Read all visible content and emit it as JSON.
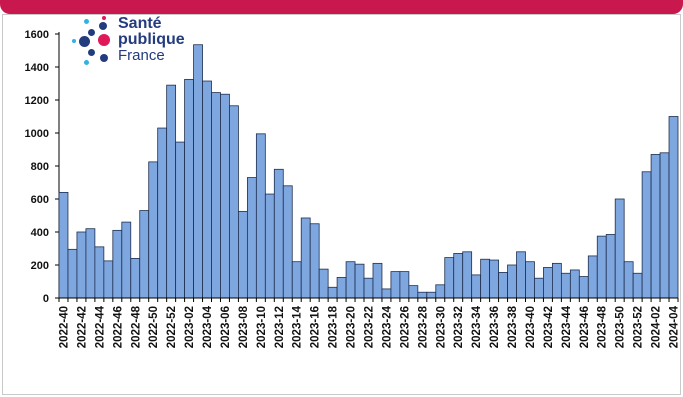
{
  "logo": {
    "line1": "Santé",
    "line2": "publique",
    "line3": "France"
  },
  "colors": {
    "bar_fill": "#7ea6df",
    "bar_stroke": "#1f2f4f",
    "brand_band": "#c8184d",
    "logo_navy": "#233c7e",
    "logo_cyan": "#33b1e0",
    "logo_magenta": "#e0185a"
  },
  "chart_data": {
    "type": "bar",
    "title": "",
    "xlabel": "",
    "ylabel": "",
    "ylim": [
      0,
      1600
    ],
    "yticks": [
      0,
      200,
      400,
      600,
      800,
      1000,
      1200,
      1400,
      1600
    ],
    "grid": false,
    "categories": [
      "2022-40",
      "2022-41",
      "2022-42",
      "2022-43",
      "2022-44",
      "2022-45",
      "2022-46",
      "2022-47",
      "2022-48",
      "2022-49",
      "2022-50",
      "2022-51",
      "2022-52",
      "2023-01",
      "2023-02",
      "2023-03",
      "2023-04",
      "2023-05",
      "2023-06",
      "2023-07",
      "2023-08",
      "2023-09",
      "2023-10",
      "2023-11",
      "2023-12",
      "2023-13",
      "2023-14",
      "2023-15",
      "2023-16",
      "2023-17",
      "2023-18",
      "2023-19",
      "2023-20",
      "2023-21",
      "2023-22",
      "2023-23",
      "2023-24",
      "2023-25",
      "2023-26",
      "2023-27",
      "2023-28",
      "2023-29",
      "2023-30",
      "2023-31",
      "2023-32",
      "2023-33",
      "2023-34",
      "2023-35",
      "2023-36",
      "2023-37",
      "2023-38",
      "2023-39",
      "2023-40",
      "2023-41",
      "2023-42",
      "2023-43",
      "2023-44",
      "2023-45",
      "2023-46",
      "2023-47",
      "2023-48",
      "2023-49",
      "2023-50",
      "2023-51",
      "2023-52",
      "2024-01",
      "2024-02",
      "2024-03",
      "2024-04"
    ],
    "visible_tick_labels": [
      "2022-40",
      "2022-42",
      "2022-44",
      "2022-46",
      "2022-48",
      "2022-50",
      "2022-52",
      "2023-02",
      "2023-04",
      "2023-06",
      "2023-08",
      "2023-10",
      "2023-12",
      "2023-14",
      "2023-16",
      "2023-18",
      "2023-20",
      "2023-22",
      "2023-24",
      "2023-26",
      "2023-28",
      "2023-30",
      "2023-32",
      "2023-34",
      "2023-36",
      "2023-38",
      "2023-40",
      "2023-42",
      "2023-44",
      "2023-46",
      "2023-48",
      "2023-50",
      "2023-52",
      "2024-02",
      "2024-04"
    ],
    "values": [
      640,
      295,
      400,
      420,
      310,
      225,
      410,
      460,
      240,
      530,
      825,
      1030,
      1290,
      945,
      1325,
      1535,
      1315,
      1245,
      1235,
      1165,
      525,
      730,
      995,
      630,
      780,
      680,
      220,
      485,
      450,
      175,
      65,
      125,
      220,
      205,
      120,
      210,
      55,
      160,
      160,
      75,
      35,
      35,
      80,
      245,
      270,
      280,
      140,
      235,
      230,
      155,
      200,
      280,
      220,
      120,
      185,
      210,
      150,
      170,
      130,
      255,
      375,
      385,
      600,
      220,
      150,
      765,
      870,
      880,
      1100
    ]
  }
}
